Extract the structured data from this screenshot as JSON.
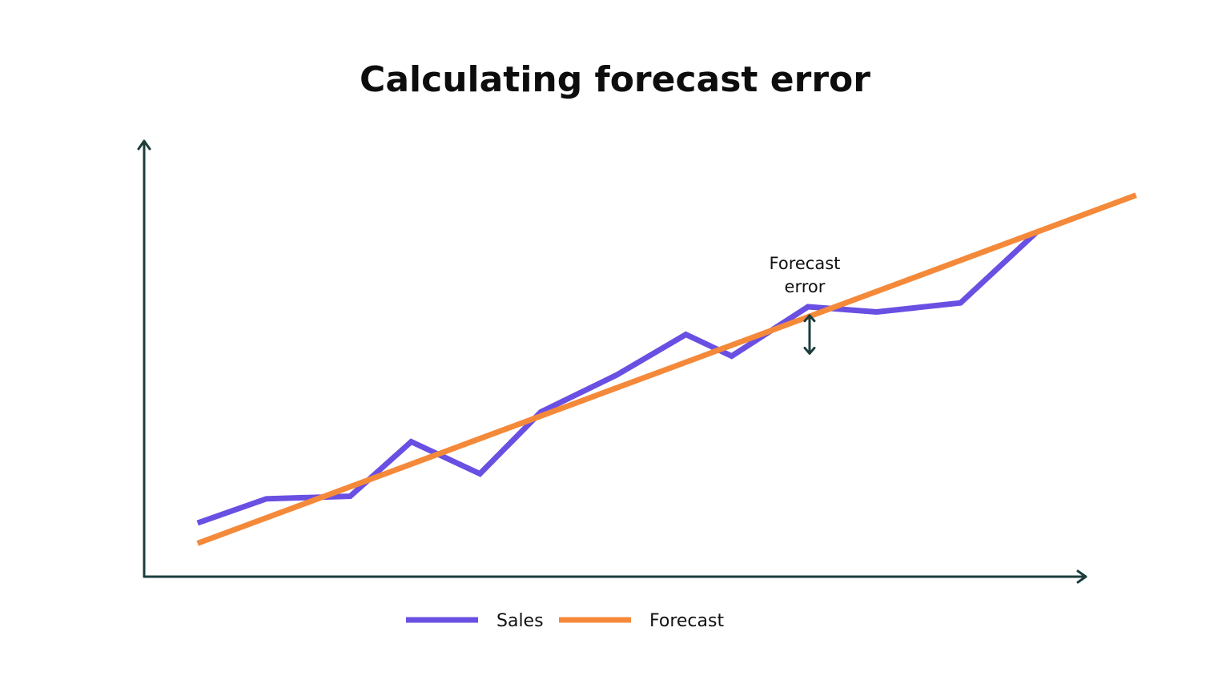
{
  "chart_data": {
    "type": "line",
    "title": "Calculating forecast error",
    "xlabel": "",
    "ylabel": "",
    "x": [
      1,
      2,
      3,
      4,
      5,
      6,
      7,
      8,
      9,
      10,
      11,
      12
    ],
    "xlim": [
      0.3,
      12.6
    ],
    "ylim": [
      0,
      100
    ],
    "grid": false,
    "legend_position": "bottom-center",
    "series": [
      {
        "name": "Sales",
        "color": "#6a4fe3",
        "x": [
          1,
          1.9,
          3,
          3.8,
          4.7,
          5.5,
          6.5,
          7.4,
          8,
          9,
          9.9,
          11,
          12
        ],
        "values": [
          12.4,
          18.0,
          18.6,
          31.2,
          23.8,
          38.1,
          46.7,
          56.0,
          51.0,
          62.4,
          61.2,
          63.3,
          79.7
        ]
      },
      {
        "name": "Forecast",
        "color": "#f5893a",
        "x": [
          1,
          13.3
        ],
        "values": [
          7.7,
          88.2
        ]
      }
    ],
    "annotations": [
      {
        "text_line1": "Forecast",
        "text_line2": "error",
        "x": 9.0,
        "from_value": 51.4,
        "to_value": 60.6,
        "color": "#1e3d3d"
      }
    ],
    "axis_color": "#1e3d3d"
  }
}
